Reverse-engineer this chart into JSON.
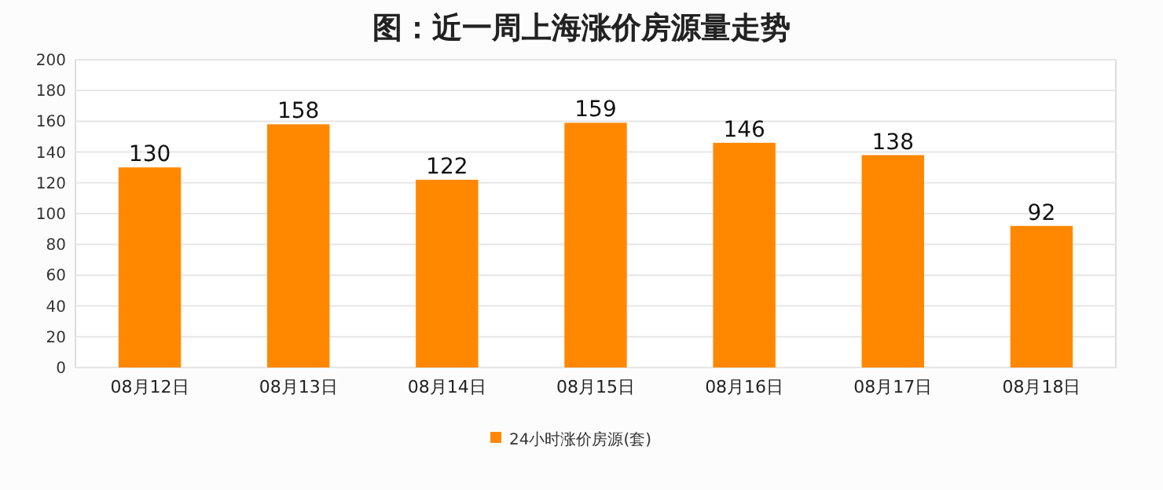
{
  "chart_data": {
    "type": "bar",
    "title": "图：近一周上海涨价房源量走势",
    "categories": [
      "08月12日",
      "08月13日",
      "08月14日",
      "08月15日",
      "08月16日",
      "08月17日",
      "08月18日"
    ],
    "series": [
      {
        "name": "24小时涨价房源(套)",
        "color": "#ff8800",
        "values": [
          130,
          158,
          122,
          159,
          146,
          138,
          92
        ]
      }
    ],
    "ylim": [
      0,
      200
    ],
    "yticks": [
      0,
      20,
      40,
      60,
      80,
      100,
      120,
      140,
      160,
      180,
      200
    ],
    "grid": "y",
    "data_labels": true,
    "legend": "bottom"
  }
}
